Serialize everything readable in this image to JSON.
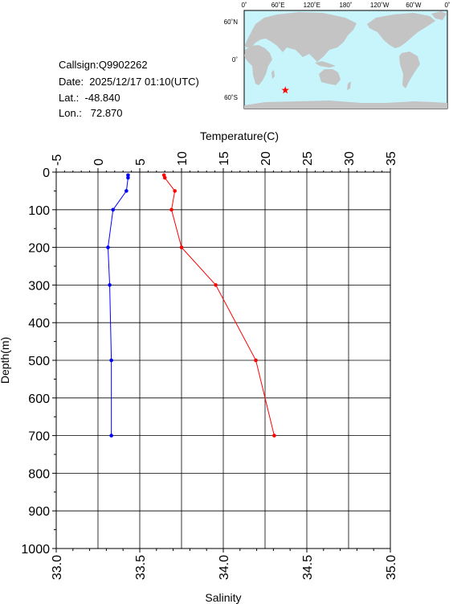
{
  "header": {
    "callsign": "Callsign:Q9902262",
    "date": "Date:  2025/12/17 01:10(UTC)",
    "lat": "Lat.:  -48.840",
    "lon": "Lon.:   72.870"
  },
  "map": {
    "top_ticks": [
      "0˚",
      "60˚E",
      "120˚E",
      "180˚",
      "120˚W",
      "60˚W",
      "0˚"
    ],
    "left_ticks": [
      "60˚N",
      "0˚",
      "60˚S"
    ],
    "ocean_color": "#c8f4fb",
    "land_color": "#c4c4c4",
    "marker": {
      "lon": 72.87,
      "lat": -48.84,
      "symbol": "star",
      "color": "#ff0000"
    }
  },
  "chart_data": {
    "type": "line",
    "y_axis": {
      "label": "Depth(m)",
      "range": [
        0,
        1000
      ],
      "inverted": true,
      "ticks": [
        "0",
        "100",
        "200",
        "300",
        "400",
        "500",
        "600",
        "700",
        "800",
        "900",
        "1000"
      ]
    },
    "top_axis": {
      "label": "Temperature(C)",
      "range": [
        -5,
        35
      ],
      "ticks": [
        "-5",
        "0",
        "5",
        "10",
        "15",
        "20",
        "25",
        "30",
        "35"
      ]
    },
    "bottom_axis": {
      "label": "Salinity",
      "range": [
        33.0,
        35.0
      ],
      "ticks": [
        "33.0",
        "33.5",
        "34.0",
        "34.5",
        "35.0"
      ]
    },
    "grid": true,
    "series": [
      {
        "axis": "top",
        "color": "#ff0000",
        "depth": [
          8,
          15,
          50,
          100,
          200,
          300,
          500,
          700
        ],
        "values": [
          7.9,
          8.0,
          9.2,
          8.8,
          10.0,
          14.1,
          18.9,
          21.1
        ]
      },
      {
        "axis": "bottom",
        "color": "#0000ff",
        "depth": [
          8,
          15,
          50,
          100,
          200,
          300,
          500,
          700
        ],
        "values": [
          33.43,
          33.43,
          33.42,
          33.34,
          33.31,
          33.32,
          33.33,
          33.33
        ]
      }
    ]
  }
}
